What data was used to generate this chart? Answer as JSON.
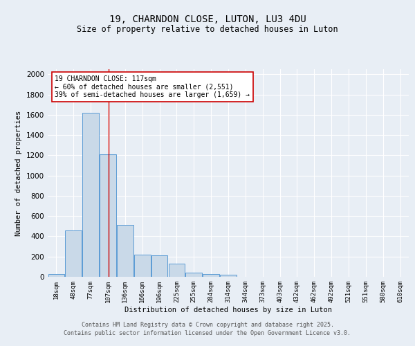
{
  "title1": "19, CHARNDON CLOSE, LUTON, LU3 4DU",
  "title2": "Size of property relative to detached houses in Luton",
  "xlabel": "Distribution of detached houses by size in Luton",
  "ylabel": "Number of detached properties",
  "bin_labels": [
    "18sqm",
    "48sqm",
    "77sqm",
    "107sqm",
    "136sqm",
    "166sqm",
    "196sqm",
    "225sqm",
    "255sqm",
    "284sqm",
    "314sqm",
    "344sqm",
    "373sqm",
    "403sqm",
    "432sqm",
    "462sqm",
    "492sqm",
    "521sqm",
    "551sqm",
    "580sqm",
    "610sqm"
  ],
  "bar_heights": [
    30,
    460,
    1620,
    1210,
    510,
    220,
    215,
    130,
    40,
    25,
    20,
    0,
    0,
    0,
    0,
    0,
    0,
    0,
    0,
    0,
    0
  ],
  "bar_color": "#c9d9e8",
  "bar_edge_color": "#5b9bd5",
  "vline_x": 3.05,
  "vline_color": "#cc0000",
  "annotation_text": "19 CHARNDON CLOSE: 117sqm\n← 60% of detached houses are smaller (2,551)\n39% of semi-detached houses are larger (1,659) →",
  "annotation_box_color": "#ffffff",
  "annotation_box_edge": "#cc0000",
  "ylim": [
    0,
    2050
  ],
  "yticks": [
    0,
    200,
    400,
    600,
    800,
    1000,
    1200,
    1400,
    1600,
    1800,
    2000
  ],
  "footer1": "Contains HM Land Registry data © Crown copyright and database right 2025.",
  "footer2": "Contains public sector information licensed under the Open Government Licence v3.0.",
  "bg_color": "#e8eef5",
  "plot_bg_color": "#e8eef5"
}
